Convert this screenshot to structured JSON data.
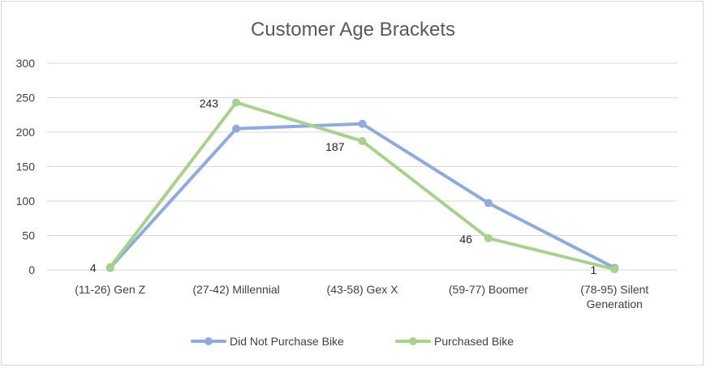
{
  "chart_data": {
    "type": "line",
    "title": "Customer Age Brackets",
    "xlabel": "",
    "ylabel": "",
    "ylim": [
      0,
      300
    ],
    "yticks": [
      0,
      50,
      100,
      150,
      200,
      250,
      300
    ],
    "categories": [
      [
        "(11-26) Gen Z"
      ],
      [
        "(27-42) Millennial"
      ],
      [
        "(43-58) Gex X"
      ],
      [
        "(59-77) Boomer"
      ],
      [
        "(78-95) Silent",
        "Generation"
      ]
    ],
    "series": [
      {
        "name": "Did Not Purchase Bike",
        "color": "#8faadc",
        "values": [
          3,
          205,
          212,
          97,
          3
        ]
      },
      {
        "name": "Purchased Bike",
        "color": "#a9d18e",
        "values": [
          4,
          243,
          187,
          46,
          1
        ],
        "data_labels": [
          "4",
          "243",
          "187",
          "46",
          "1"
        ]
      }
    ],
    "grid": true,
    "legend": "bottom"
  }
}
